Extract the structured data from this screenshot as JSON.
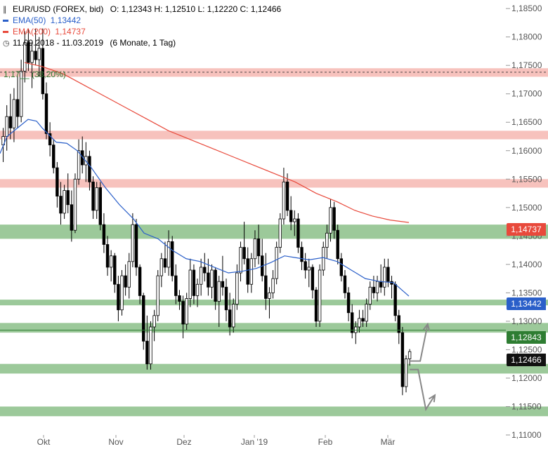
{
  "header": {
    "title": "EUR/USD (FOREX, bid)",
    "ohlc": "O: 1,12343  H: 1,12510  L: 1,12220  C: 1,12466",
    "ema50_label": "EMA(50)",
    "ema50_value": "1,13442",
    "ema200_label": "EMA(200)",
    "ema200_value": "1,14737",
    "range": "11.09.2018 - 11.03.2019",
    "range_detail": "(6 Monate, 1 Tag)"
  },
  "fib_label": "1,17__ (38,20%)",
  "price_boxes": {
    "ema200": "1,14737",
    "ema50": "1,13442",
    "support": "1,12843",
    "last": "1,12466"
  },
  "colors": {
    "ema50": "#2a5fc9",
    "ema200": "#e8493b",
    "green_zone": "#9cc99a",
    "red_zone": "#f7c2bd",
    "support_box": "#2e7d32",
    "last_box": "#111111",
    "arrows": "#888888"
  },
  "chart_data": {
    "type": "candlestick",
    "x_tick_labels": [
      "Okt",
      "Nov",
      "Dez",
      "Jan '19",
      "Feb",
      "Mär"
    ],
    "y_tick_labels": [
      "1,18500",
      "1,18000",
      "1,17500",
      "1,17000",
      "1,16500",
      "1,16000",
      "1,15500",
      "1,15000",
      "1,14500",
      "1,14000",
      "1,13500",
      "1,13000",
      "1,12500",
      "1,12000",
      "1,11500",
      "1,11000"
    ],
    "ylim": [
      1.11,
      1.1865
    ],
    "horizontal_zones": [
      {
        "color": "red",
        "from": 1.173,
        "to": 1.1745
      },
      {
        "color": "red",
        "from": 1.162,
        "to": 1.1635
      },
      {
        "color": "red",
        "from": 1.1535,
        "to": 1.155
      },
      {
        "color": "green",
        "from": 1.1445,
        "to": 1.147
      },
      {
        "color": "green",
        "from": 1.1328,
        "to": 1.1338
      },
      {
        "color": "green",
        "from": 1.128,
        "to": 1.1297
      },
      {
        "color": "green",
        "from": 1.1208,
        "to": 1.1225
      },
      {
        "color": "green",
        "from": 1.1133,
        "to": 1.115
      }
    ],
    "dashed_level": 1.1738,
    "support_line": 1.12843,
    "ema50": [
      [
        0,
        1.1595
      ],
      [
        10,
        1.1625
      ],
      [
        25,
        1.164
      ],
      [
        40,
        1.1655
      ],
      [
        52,
        1.1652
      ],
      [
        60,
        1.164
      ],
      [
        80,
        1.1615
      ],
      [
        95,
        1.1613
      ],
      [
        110,
        1.16
      ],
      [
        130,
        1.157
      ],
      [
        150,
        1.1535
      ],
      [
        170,
        1.1505
      ],
      [
        190,
        1.148
      ],
      [
        205,
        1.1455
      ],
      [
        225,
        1.1445
      ],
      [
        245,
        1.1425
      ],
      [
        265,
        1.141
      ],
      [
        285,
        1.1405
      ],
      [
        305,
        1.1395
      ],
      [
        325,
        1.1385
      ],
      [
        345,
        1.1388
      ],
      [
        365,
        1.1393
      ],
      [
        385,
        1.1403
      ],
      [
        405,
        1.1415
      ],
      [
        420,
        1.1412
      ],
      [
        440,
        1.1408
      ],
      [
        460,
        1.1412
      ],
      [
        480,
        1.1405
      ],
      [
        500,
        1.139
      ],
      [
        520,
        1.1375
      ],
      [
        540,
        1.137
      ],
      [
        560,
        1.1368
      ],
      [
        582,
        1.13442
      ]
    ],
    "ema200": [
      [
        35,
        1.1755
      ],
      [
        60,
        1.1748
      ],
      [
        90,
        1.1735
      ],
      [
        120,
        1.1715
      ],
      [
        150,
        1.1695
      ],
      [
        180,
        1.1675
      ],
      [
        210,
        1.1655
      ],
      [
        240,
        1.1635
      ],
      [
        270,
        1.162
      ],
      [
        300,
        1.1605
      ],
      [
        330,
        1.159
      ],
      [
        360,
        1.1575
      ],
      [
        390,
        1.156
      ],
      [
        420,
        1.1545
      ],
      [
        450,
        1.1525
      ],
      [
        480,
        1.151
      ],
      [
        505,
        1.1495
      ],
      [
        530,
        1.1485
      ],
      [
        555,
        1.1478
      ],
      [
        582,
        1.14737
      ]
    ],
    "candles": [
      {
        "i": 0,
        "o": 1.161,
        "h": 1.164,
        "l": 1.158,
        "c": 1.1625
      },
      {
        "i": 1,
        "o": 1.1625,
        "h": 1.168,
        "l": 1.16,
        "c": 1.166
      },
      {
        "i": 2,
        "o": 1.166,
        "h": 1.17,
        "l": 1.162,
        "c": 1.164
      },
      {
        "i": 3,
        "o": 1.164,
        "h": 1.171,
        "l": 1.1615,
        "c": 1.169
      },
      {
        "i": 4,
        "o": 1.169,
        "h": 1.173,
        "l": 1.164,
        "c": 1.166
      },
      {
        "i": 5,
        "o": 1.166,
        "h": 1.176,
        "l": 1.165,
        "c": 1.174
      },
      {
        "i": 6,
        "o": 1.174,
        "h": 1.181,
        "l": 1.172,
        "c": 1.179
      },
      {
        "i": 7,
        "o": 1.179,
        "h": 1.1815,
        "l": 1.174,
        "c": 1.1755
      },
      {
        "i": 8,
        "o": 1.1755,
        "h": 1.179,
        "l": 1.171,
        "c": 1.1775
      },
      {
        "i": 9,
        "o": 1.1775,
        "h": 1.1815,
        "l": 1.175,
        "c": 1.176
      },
      {
        "i": 10,
        "o": 1.176,
        "h": 1.18,
        "l": 1.173,
        "c": 1.178
      },
      {
        "i": 11,
        "o": 1.178,
        "h": 1.1815,
        "l": 1.169,
        "c": 1.17
      },
      {
        "i": 12,
        "o": 1.17,
        "h": 1.172,
        "l": 1.162,
        "c": 1.163
      },
      {
        "i": 13,
        "o": 1.163,
        "h": 1.165,
        "l": 1.159,
        "c": 1.161
      },
      {
        "i": 14,
        "o": 1.161,
        "h": 1.162,
        "l": 1.156,
        "c": 1.157
      },
      {
        "i": 15,
        "o": 1.157,
        "h": 1.158,
        "l": 1.15,
        "c": 1.152
      },
      {
        "i": 16,
        "o": 1.152,
        "h": 1.1545,
        "l": 1.147,
        "c": 1.149
      },
      {
        "i": 17,
        "o": 1.149,
        "h": 1.154,
        "l": 1.148,
        "c": 1.153
      },
      {
        "i": 18,
        "o": 1.153,
        "h": 1.156,
        "l": 1.149,
        "c": 1.1505
      },
      {
        "i": 19,
        "o": 1.1505,
        "h": 1.153,
        "l": 1.144,
        "c": 1.146
      },
      {
        "i": 20,
        "o": 1.146,
        "h": 1.156,
        "l": 1.1455,
        "c": 1.155
      },
      {
        "i": 21,
        "o": 1.155,
        "h": 1.162,
        "l": 1.154,
        "c": 1.16
      },
      {
        "i": 22,
        "o": 1.16,
        "h": 1.1625,
        "l": 1.156,
        "c": 1.1575
      },
      {
        "i": 23,
        "o": 1.1575,
        "h": 1.1615,
        "l": 1.1545,
        "c": 1.159
      },
      {
        "i": 24,
        "o": 1.159,
        "h": 1.16,
        "l": 1.153,
        "c": 1.1545
      },
      {
        "i": 25,
        "o": 1.1545,
        "h": 1.1555,
        "l": 1.148,
        "c": 1.1495
      },
      {
        "i": 26,
        "o": 1.1495,
        "h": 1.1545,
        "l": 1.148,
        "c": 1.1535
      },
      {
        "i": 27,
        "o": 1.1535,
        "h": 1.1545,
        "l": 1.146,
        "c": 1.147
      },
      {
        "i": 28,
        "o": 1.147,
        "h": 1.149,
        "l": 1.142,
        "c": 1.1435
      },
      {
        "i": 29,
        "o": 1.1435,
        "h": 1.145,
        "l": 1.138,
        "c": 1.1395
      },
      {
        "i": 30,
        "o": 1.1395,
        "h": 1.1425,
        "l": 1.137,
        "c": 1.1415
      },
      {
        "i": 31,
        "o": 1.1415,
        "h": 1.142,
        "l": 1.135,
        "c": 1.1365
      },
      {
        "i": 32,
        "o": 1.1365,
        "h": 1.138,
        "l": 1.13,
        "c": 1.132
      },
      {
        "i": 33,
        "o": 1.132,
        "h": 1.139,
        "l": 1.131,
        "c": 1.138
      },
      {
        "i": 34,
        "o": 1.138,
        "h": 1.14,
        "l": 1.1345,
        "c": 1.136
      },
      {
        "i": 35,
        "o": 1.136,
        "h": 1.142,
        "l": 1.134,
        "c": 1.1405
      },
      {
        "i": 36,
        "o": 1.1405,
        "h": 1.149,
        "l": 1.1395,
        "c": 1.147
      },
      {
        "i": 37,
        "o": 1.147,
        "h": 1.148,
        "l": 1.138,
        "c": 1.1395
      },
      {
        "i": 38,
        "o": 1.1395,
        "h": 1.14,
        "l": 1.133,
        "c": 1.1345
      },
      {
        "i": 39,
        "o": 1.1345,
        "h": 1.135,
        "l": 1.125,
        "c": 1.1265
      },
      {
        "i": 40,
        "o": 1.1265,
        "h": 1.131,
        "l": 1.1215,
        "c": 1.1225
      },
      {
        "i": 41,
        "o": 1.1225,
        "h": 1.13,
        "l": 1.1215,
        "c": 1.129
      },
      {
        "i": 42,
        "o": 1.129,
        "h": 1.132,
        "l": 1.1265,
        "c": 1.131
      },
      {
        "i": 43,
        "o": 1.131,
        "h": 1.139,
        "l": 1.13,
        "c": 1.138
      },
      {
        "i": 44,
        "o": 1.138,
        "h": 1.142,
        "l": 1.136,
        "c": 1.141
      },
      {
        "i": 45,
        "o": 1.141,
        "h": 1.144,
        "l": 1.1385,
        "c": 1.1395
      },
      {
        "i": 46,
        "o": 1.1395,
        "h": 1.146,
        "l": 1.138,
        "c": 1.144
      },
      {
        "i": 47,
        "o": 1.144,
        "h": 1.145,
        "l": 1.137,
        "c": 1.138
      },
      {
        "i": 48,
        "o": 1.138,
        "h": 1.14,
        "l": 1.133,
        "c": 1.1345
      },
      {
        "i": 49,
        "o": 1.1345,
        "h": 1.1355,
        "l": 1.132,
        "c": 1.1335
      },
      {
        "i": 50,
        "o": 1.1335,
        "h": 1.1345,
        "l": 1.127,
        "c": 1.1295
      },
      {
        "i": 51,
        "o": 1.1295,
        "h": 1.135,
        "l": 1.1285,
        "c": 1.134
      },
      {
        "i": 52,
        "o": 1.134,
        "h": 1.141,
        "l": 1.1325,
        "c": 1.139
      },
      {
        "i": 53,
        "o": 1.139,
        "h": 1.14,
        "l": 1.133,
        "c": 1.1345
      },
      {
        "i": 54,
        "o": 1.1345,
        "h": 1.1375,
        "l": 1.1325,
        "c": 1.1365
      },
      {
        "i": 55,
        "o": 1.1365,
        "h": 1.141,
        "l": 1.1345,
        "c": 1.1395
      },
      {
        "i": 56,
        "o": 1.1395,
        "h": 1.142,
        "l": 1.137,
        "c": 1.1385
      },
      {
        "i": 57,
        "o": 1.1385,
        "h": 1.141,
        "l": 1.1345,
        "c": 1.136
      },
      {
        "i": 58,
        "o": 1.136,
        "h": 1.14,
        "l": 1.134,
        "c": 1.139
      },
      {
        "i": 59,
        "o": 1.139,
        "h": 1.1395,
        "l": 1.132,
        "c": 1.1335
      },
      {
        "i": 60,
        "o": 1.1335,
        "h": 1.138,
        "l": 1.129,
        "c": 1.137
      },
      {
        "i": 61,
        "o": 1.137,
        "h": 1.1415,
        "l": 1.1345,
        "c": 1.136
      },
      {
        "i": 62,
        "o": 1.136,
        "h": 1.1375,
        "l": 1.13,
        "c": 1.132
      },
      {
        "i": 63,
        "o": 1.132,
        "h": 1.135,
        "l": 1.1275,
        "c": 1.129
      },
      {
        "i": 64,
        "o": 1.129,
        "h": 1.134,
        "l": 1.128,
        "c": 1.133
      },
      {
        "i": 65,
        "o": 1.133,
        "h": 1.14,
        "l": 1.132,
        "c": 1.1385
      },
      {
        "i": 66,
        "o": 1.1385,
        "h": 1.144,
        "l": 1.137,
        "c": 1.143
      },
      {
        "i": 67,
        "o": 1.143,
        "h": 1.1475,
        "l": 1.14,
        "c": 1.141
      },
      {
        "i": 68,
        "o": 1.141,
        "h": 1.143,
        "l": 1.135,
        "c": 1.1365
      },
      {
        "i": 69,
        "o": 1.1365,
        "h": 1.142,
        "l": 1.135,
        "c": 1.141
      },
      {
        "i": 70,
        "o": 1.141,
        "h": 1.146,
        "l": 1.1395,
        "c": 1.1445
      },
      {
        "i": 71,
        "o": 1.1445,
        "h": 1.147,
        "l": 1.14,
        "c": 1.1415
      },
      {
        "i": 72,
        "o": 1.1415,
        "h": 1.1445,
        "l": 1.137,
        "c": 1.138
      },
      {
        "i": 73,
        "o": 1.138,
        "h": 1.142,
        "l": 1.132,
        "c": 1.134
      },
      {
        "i": 74,
        "o": 1.134,
        "h": 1.136,
        "l": 1.1305,
        "c": 1.135
      },
      {
        "i": 75,
        "o": 1.135,
        "h": 1.139,
        "l": 1.134,
        "c": 1.1375
      },
      {
        "i": 76,
        "o": 1.1375,
        "h": 1.144,
        "l": 1.1365,
        "c": 1.143
      },
      {
        "i": 77,
        "o": 1.143,
        "h": 1.149,
        "l": 1.142,
        "c": 1.148
      },
      {
        "i": 78,
        "o": 1.148,
        "h": 1.157,
        "l": 1.147,
        "c": 1.1545
      },
      {
        "i": 79,
        "o": 1.1545,
        "h": 1.156,
        "l": 1.1485,
        "c": 1.1495
      },
      {
        "i": 80,
        "o": 1.1495,
        "h": 1.152,
        "l": 1.146,
        "c": 1.1475
      },
      {
        "i": 81,
        "o": 1.1475,
        "h": 1.1495,
        "l": 1.145,
        "c": 1.148
      },
      {
        "i": 82,
        "o": 1.148,
        "h": 1.149,
        "l": 1.142,
        "c": 1.143
      },
      {
        "i": 83,
        "o": 1.143,
        "h": 1.144,
        "l": 1.139,
        "c": 1.1405
      },
      {
        "i": 84,
        "o": 1.1405,
        "h": 1.142,
        "l": 1.1375,
        "c": 1.139
      },
      {
        "i": 85,
        "o": 1.139,
        "h": 1.141,
        "l": 1.136,
        "c": 1.1395
      },
      {
        "i": 86,
        "o": 1.1395,
        "h": 1.14,
        "l": 1.134,
        "c": 1.1355
      },
      {
        "i": 87,
        "o": 1.1355,
        "h": 1.136,
        "l": 1.129,
        "c": 1.13
      },
      {
        "i": 88,
        "o": 1.13,
        "h": 1.14,
        "l": 1.129,
        "c": 1.139
      },
      {
        "i": 89,
        "o": 1.139,
        "h": 1.144,
        "l": 1.138,
        "c": 1.143
      },
      {
        "i": 90,
        "o": 1.143,
        "h": 1.147,
        "l": 1.141,
        "c": 1.1455
      },
      {
        "i": 91,
        "o": 1.1455,
        "h": 1.1515,
        "l": 1.144,
        "c": 1.15
      },
      {
        "i": 92,
        "o": 1.15,
        "h": 1.151,
        "l": 1.1445,
        "c": 1.146
      },
      {
        "i": 93,
        "o": 1.146,
        "h": 1.147,
        "l": 1.14,
        "c": 1.141
      },
      {
        "i": 94,
        "o": 1.141,
        "h": 1.142,
        "l": 1.137,
        "c": 1.138
      },
      {
        "i": 95,
        "o": 1.138,
        "h": 1.139,
        "l": 1.134,
        "c": 1.135
      },
      {
        "i": 96,
        "o": 1.135,
        "h": 1.136,
        "l": 1.13,
        "c": 1.1315
      },
      {
        "i": 97,
        "o": 1.1315,
        "h": 1.133,
        "l": 1.127,
        "c": 1.128
      },
      {
        "i": 98,
        "o": 1.128,
        "h": 1.13,
        "l": 1.126,
        "c": 1.129
      },
      {
        "i": 99,
        "o": 1.129,
        "h": 1.132,
        "l": 1.128,
        "c": 1.1305
      },
      {
        "i": 100,
        "o": 1.1305,
        "h": 1.132,
        "l": 1.129,
        "c": 1.13
      },
      {
        "i": 101,
        "o": 1.13,
        "h": 1.134,
        "l": 1.129,
        "c": 1.133
      },
      {
        "i": 102,
        "o": 1.133,
        "h": 1.137,
        "l": 1.132,
        "c": 1.136
      },
      {
        "i": 103,
        "o": 1.136,
        "h": 1.138,
        "l": 1.134,
        "c": 1.135
      },
      {
        "i": 104,
        "o": 1.135,
        "h": 1.138,
        "l": 1.1335,
        "c": 1.137
      },
      {
        "i": 105,
        "o": 1.137,
        "h": 1.14,
        "l": 1.135,
        "c": 1.136
      },
      {
        "i": 106,
        "o": 1.136,
        "h": 1.141,
        "l": 1.1345,
        "c": 1.1395
      },
      {
        "i": 107,
        "o": 1.1395,
        "h": 1.141,
        "l": 1.136,
        "c": 1.137
      },
      {
        "i": 108,
        "o": 1.137,
        "h": 1.138,
        "l": 1.134,
        "c": 1.1365
      },
      {
        "i": 109,
        "o": 1.1365,
        "h": 1.137,
        "l": 1.13,
        "c": 1.131
      },
      {
        "i": 110,
        "o": 1.131,
        "h": 1.132,
        "l": 1.126,
        "c": 1.128
      },
      {
        "i": 111,
        "o": 1.128,
        "h": 1.129,
        "l": 1.117,
        "c": 1.1185
      },
      {
        "i": 112,
        "o": 1.1185,
        "h": 1.124,
        "l": 1.1175,
        "c": 1.1234
      },
      {
        "i": 113,
        "o": 1.1234,
        "h": 1.1251,
        "l": 1.1222,
        "c": 1.12466
      }
    ],
    "annotation_arrows": [
      {
        "from": [
          113.5,
          1.123
        ],
        "to": [
          118.5,
          1.1295
        ]
      },
      {
        "from": [
          113.5,
          1.1215
        ],
        "to": [
          118.0,
          1.1145
        ],
        "then": [
          120.5,
          1.117
        ]
      }
    ]
  }
}
